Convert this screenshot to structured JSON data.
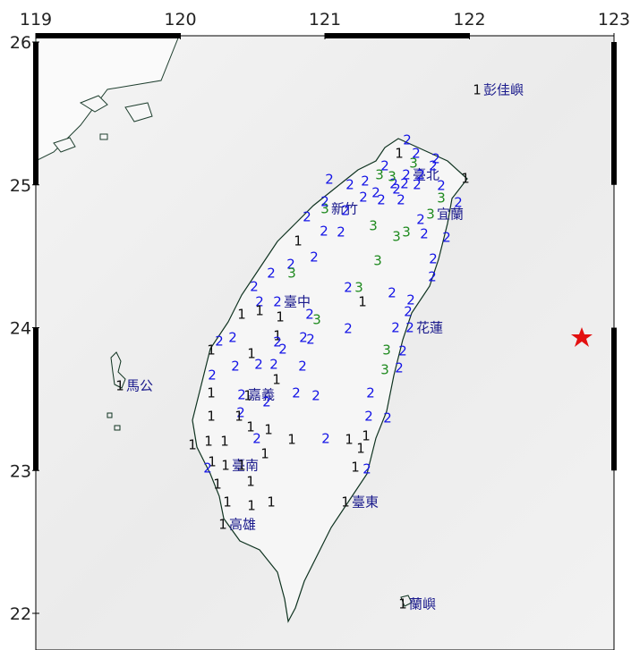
{
  "map": {
    "xlim": [
      119,
      123
    ],
    "ylim": [
      22,
      26
    ],
    "xticks": [
      119,
      120,
      121,
      122,
      123
    ],
    "yticks": [
      26,
      25,
      24,
      23,
      22
    ],
    "intensity_colors": {
      "1": "#111111",
      "2": "#1414e6",
      "3": "#1f8a1f"
    },
    "cities": [
      {
        "name": "彭佳嶼",
        "intensity": 1
      },
      {
        "name": "臺北",
        "intensity": 2
      },
      {
        "name": "宜蘭",
        "intensity": 3
      },
      {
        "name": "新竹",
        "intensity": 3
      },
      {
        "name": "臺中",
        "intensity": 2
      },
      {
        "name": "花蓮",
        "intensity": 2
      },
      {
        "name": "馬公",
        "intensity": 1
      },
      {
        "name": "嘉義",
        "intensity": 2
      },
      {
        "name": "臺南",
        "intensity": 1
      },
      {
        "name": "高雄",
        "intensity": 1
      },
      {
        "name": "臺東",
        "intensity": 1
      },
      {
        "name": "蘭嶼",
        "intensity": 1
      }
    ],
    "stations": [
      2,
      2,
      2,
      2,
      1,
      3,
      2,
      2,
      3,
      2,
      3,
      2,
      2,
      2,
      2,
      2,
      2,
      2,
      2,
      1,
      2,
      2,
      2,
      2,
      3,
      2,
      2,
      2,
      3,
      2,
      2,
      2,
      3,
      3,
      2,
      2,
      1,
      2,
      2,
      3,
      2,
      2,
      3,
      2,
      2,
      2,
      3,
      2,
      2,
      1,
      2,
      1,
      1,
      2,
      1,
      2,
      3,
      2,
      2,
      2,
      2,
      1,
      2,
      1,
      1,
      2,
      2,
      2,
      3,
      2,
      2,
      2,
      2,
      2,
      2,
      3,
      2,
      1,
      1,
      2,
      2,
      2,
      2,
      1,
      2,
      1,
      1,
      2,
      2,
      1,
      1,
      1,
      1,
      1,
      2,
      1,
      2,
      1,
      1,
      1,
      1,
      1,
      2,
      1,
      1,
      2,
      1,
      1,
      1,
      1,
      1
    ]
  }
}
